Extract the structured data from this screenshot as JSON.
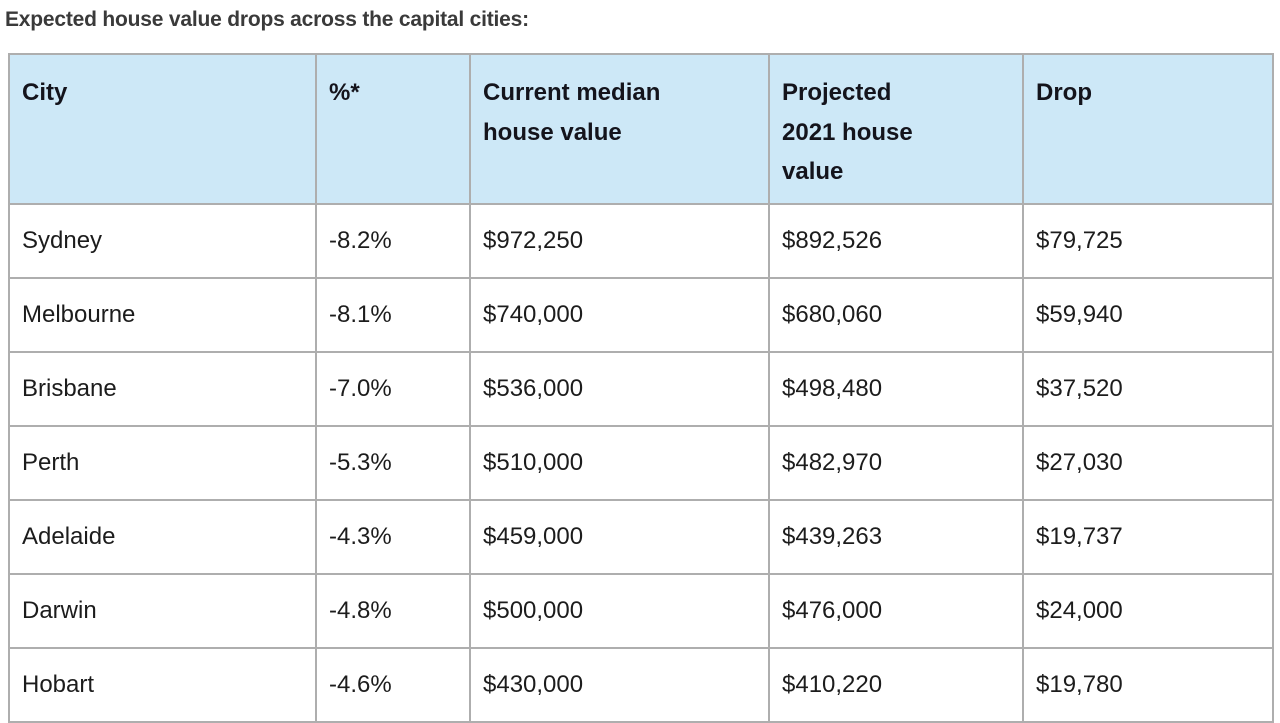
{
  "colors": {
    "header_bg": "#cde8f7",
    "border": "#aeaeae",
    "cell_text": "#1c1c1c",
    "title_text": "#3a3a3a"
  },
  "chart_data": {
    "type": "table",
    "title": "Expected house value drops across the capital cities:",
    "columns": [
      "City",
      "%*",
      "Current median\nhouse value",
      "Projected\n2021 house\nvalue",
      "Drop"
    ],
    "column_names_plain": [
      "City",
      "%*",
      "Current median house value",
      "Projected 2021 house value",
      "Drop"
    ],
    "rows": [
      [
        "Sydney",
        "-8.2%",
        "$972,250",
        "$892,526",
        "$79,725"
      ],
      [
        "Melbourne",
        "-8.1%",
        "$740,000",
        "$680,060",
        "$59,940"
      ],
      [
        "Brisbane",
        "-7.0%",
        "$536,000",
        "$498,480",
        "$37,520"
      ],
      [
        "Perth",
        "-5.3%",
        "$510,000",
        "$482,970",
        "$27,030"
      ],
      [
        "Adelaide",
        "-4.3%",
        "$459,000",
        "$439,263",
        "$19,737"
      ],
      [
        "Darwin",
        "-4.8%",
        "$500,000",
        "$476,000",
        "$24,000"
      ],
      [
        "Hobart",
        "-4.6%",
        "$430,000",
        "$410,220",
        "$19,780"
      ]
    ]
  }
}
